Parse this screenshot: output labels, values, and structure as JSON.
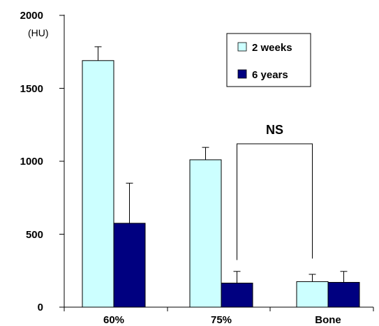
{
  "chart_data": {
    "type": "bar",
    "categories": [
      "60%",
      "75%",
      "Bone"
    ],
    "series": [
      {
        "name": "2 weeks",
        "values": [
          1690,
          1010,
          175
        ],
        "errors": [
          95,
          85,
          50
        ],
        "color": "#ccffff"
      },
      {
        "name": "6 years",
        "values": [
          575,
          165,
          170
        ],
        "errors": [
          275,
          80,
          75
        ],
        "color": "#000080"
      }
    ],
    "ylim": [
      0,
      2000
    ],
    "yticks": [
      "0",
      "500",
      "1000",
      "1500",
      "2000"
    ],
    "ylabel": "(HU)",
    "xlabel": "",
    "title": "",
    "legend_position": "top-right",
    "annotation": {
      "text": "NS",
      "from_category": 1,
      "from_series": 1,
      "to_category": 2,
      "to_series": 0
    }
  }
}
